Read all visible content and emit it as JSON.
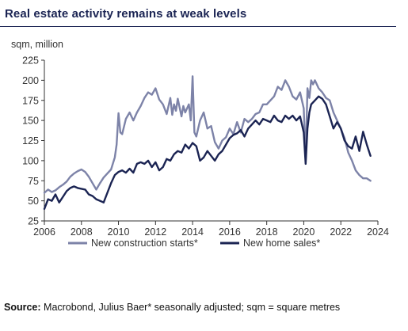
{
  "title": "Real estate activity remains at weak levels",
  "source_label": "Source:",
  "source_text": "Macrobond, Julius Baer* seasonally adjusted; sqm = square metres",
  "chart_data": {
    "type": "line",
    "ylabel": "sqm, million",
    "ylim": [
      25,
      225
    ],
    "yticks": [
      25,
      50,
      75,
      100,
      125,
      150,
      175,
      200,
      225
    ],
    "xlim": [
      2006,
      2024
    ],
    "xticks": [
      2006,
      2008,
      2010,
      2012,
      2014,
      2016,
      2018,
      2020,
      2022,
      2024
    ],
    "grid": false,
    "legend_position": "bottom",
    "colors": {
      "construction": "#7d83a8",
      "sales": "#1b2453"
    },
    "series": [
      {
        "name": "New construction starts*",
        "key": "construction",
        "x": [
          2006.0,
          2006.2,
          2006.4,
          2006.6,
          2006.8,
          2007.0,
          2007.2,
          2007.4,
          2007.6,
          2007.8,
          2008.0,
          2008.2,
          2008.4,
          2008.6,
          2008.8,
          2009.0,
          2009.2,
          2009.4,
          2009.6,
          2009.8,
          2009.9,
          2010.0,
          2010.1,
          2010.2,
          2010.4,
          2010.6,
          2010.8,
          2011.0,
          2011.2,
          2011.4,
          2011.6,
          2011.8,
          2012.0,
          2012.2,
          2012.4,
          2012.6,
          2012.8,
          2012.9,
          2013.0,
          2013.1,
          2013.2,
          2013.4,
          2013.5,
          2013.6,
          2013.8,
          2013.9,
          2014.0,
          2014.1,
          2014.2,
          2014.4,
          2014.6,
          2014.8,
          2015.0,
          2015.2,
          2015.4,
          2015.6,
          2015.8,
          2016.0,
          2016.2,
          2016.4,
          2016.6,
          2016.8,
          2017.0,
          2017.2,
          2017.4,
          2017.6,
          2017.8,
          2018.0,
          2018.2,
          2018.4,
          2018.6,
          2018.8,
          2019.0,
          2019.2,
          2019.4,
          2019.6,
          2019.8,
          2020.0,
          2020.1,
          2020.2,
          2020.3,
          2020.4,
          2020.5,
          2020.6,
          2020.8,
          2021.0,
          2021.2,
          2021.4,
          2021.6,
          2021.8,
          2022.0,
          2022.2,
          2022.4,
          2022.6,
          2022.8,
          2023.0,
          2023.2,
          2023.4,
          2023.6
        ],
        "values": [
          60,
          64,
          61,
          63,
          67,
          70,
          74,
          80,
          84,
          87,
          89,
          86,
          80,
          72,
          64,
          72,
          79,
          84,
          89,
          104,
          120,
          159,
          135,
          133,
          152,
          160,
          150,
          160,
          168,
          178,
          185,
          182,
          190,
          176,
          170,
          158,
          178,
          157,
          170,
          162,
          177,
          155,
          168,
          160,
          170,
          150,
          205,
          135,
          130,
          150,
          160,
          140,
          143,
          123,
          115,
          125,
          129,
          140,
          133,
          148,
          135,
          152,
          148,
          152,
          158,
          160,
          170,
          170,
          175,
          180,
          192,
          188,
          200,
          192,
          180,
          176,
          185,
          165,
          100,
          190,
          178,
          200,
          195,
          200,
          190,
          185,
          178,
          175,
          160,
          150,
          140,
          128,
          110,
          100,
          88,
          82,
          78,
          78,
          75
        ]
      },
      {
        "name": "New home sales*",
        "key": "sales",
        "x": [
          2006.0,
          2006.2,
          2006.4,
          2006.6,
          2006.8,
          2007.0,
          2007.2,
          2007.4,
          2007.6,
          2007.8,
          2008.0,
          2008.2,
          2008.4,
          2008.6,
          2008.8,
          2009.0,
          2009.2,
          2009.4,
          2009.6,
          2009.8,
          2010.0,
          2010.2,
          2010.4,
          2010.6,
          2010.8,
          2011.0,
          2011.2,
          2011.4,
          2011.6,
          2011.8,
          2012.0,
          2012.2,
          2012.4,
          2012.6,
          2012.8,
          2013.0,
          2013.2,
          2013.4,
          2013.6,
          2013.8,
          2014.0,
          2014.2,
          2014.4,
          2014.6,
          2014.8,
          2015.0,
          2015.2,
          2015.4,
          2015.6,
          2015.8,
          2016.0,
          2016.2,
          2016.4,
          2016.6,
          2016.8,
          2017.0,
          2017.2,
          2017.4,
          2017.6,
          2017.8,
          2018.0,
          2018.2,
          2018.4,
          2018.6,
          2018.8,
          2019.0,
          2019.2,
          2019.4,
          2019.6,
          2019.8,
          2020.0,
          2020.1,
          2020.2,
          2020.3,
          2020.4,
          2020.6,
          2020.8,
          2021.0,
          2021.2,
          2021.4,
          2021.6,
          2021.8,
          2022.0,
          2022.2,
          2022.4,
          2022.6,
          2022.8,
          2023.0,
          2023.2,
          2023.4,
          2023.6
        ],
        "values": [
          40,
          52,
          50,
          58,
          48,
          55,
          62,
          66,
          68,
          66,
          65,
          64,
          58,
          56,
          52,
          50,
          48,
          60,
          72,
          82,
          86,
          88,
          85,
          90,
          85,
          96,
          98,
          96,
          100,
          92,
          98,
          88,
          92,
          102,
          100,
          108,
          112,
          110,
          120,
          115,
          122,
          118,
          100,
          104,
          112,
          106,
          100,
          108,
          112,
          120,
          128,
          132,
          134,
          138,
          130,
          140,
          145,
          150,
          145,
          152,
          150,
          148,
          156,
          150,
          148,
          156,
          152,
          156,
          150,
          155,
          135,
          96,
          140,
          160,
          170,
          175,
          180,
          177,
          170,
          155,
          140,
          148,
          140,
          125,
          118,
          115,
          130,
          112,
          136,
          120,
          106
        ]
      }
    ]
  }
}
